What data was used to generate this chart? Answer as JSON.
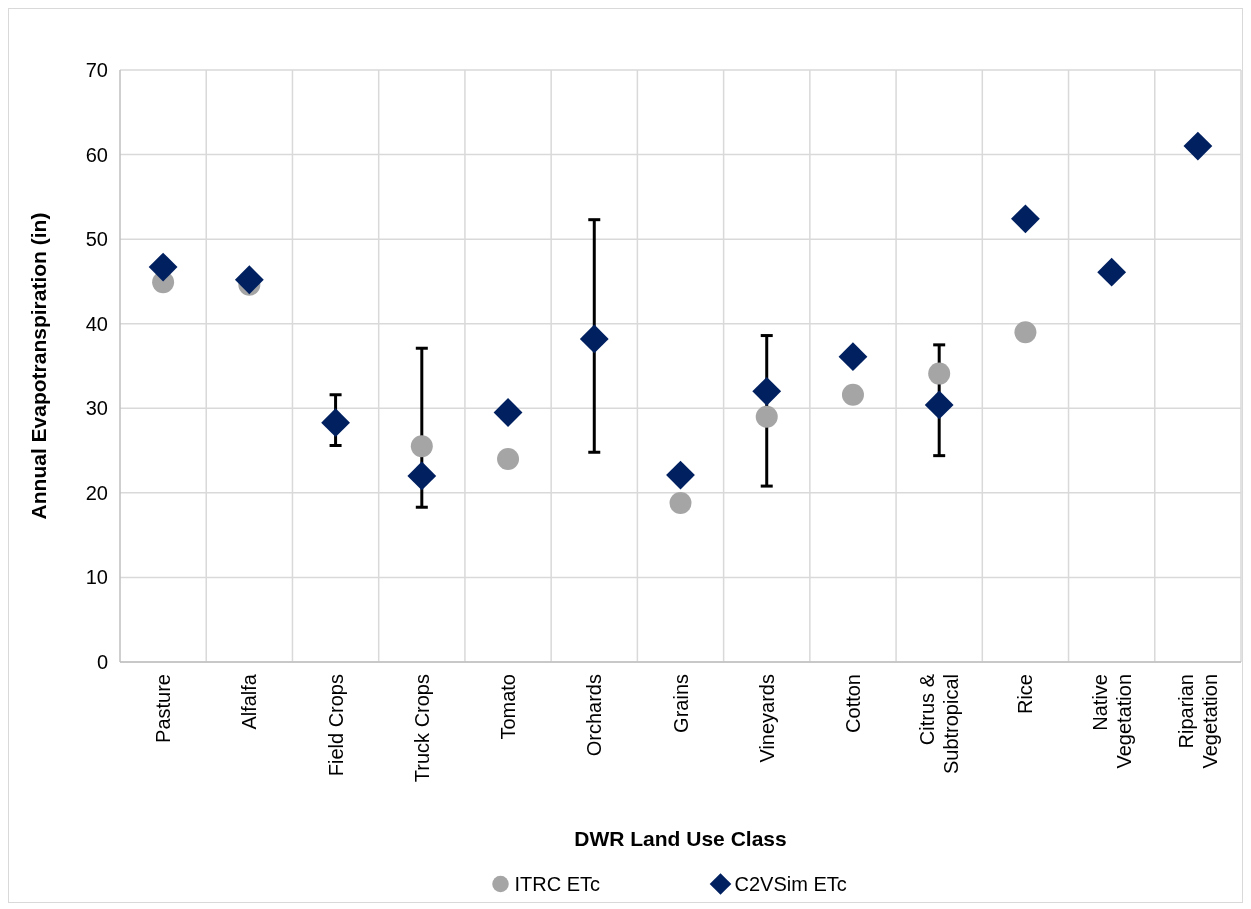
{
  "chart_data": {
    "type": "scatter",
    "xlabel": "DWR Land Use Class",
    "ylabel": "Annual Evapotranspiration (in)",
    "categories": [
      "Pasture",
      "Alfalfa",
      "Field Crops",
      "Truck Crops",
      "Tomato",
      "Orchards",
      "Grains",
      "Vineyards",
      "Cotton",
      "Citrus & Subtropical",
      "Rice",
      "Native Vegetation",
      "Riparian Vegetation"
    ],
    "series": [
      {
        "name": "ITRC ETc",
        "color": "#a5a5a5",
        "marker": "circle",
        "values": [
          44.9,
          44.6,
          null,
          25.5,
          24.0,
          null,
          18.8,
          29.0,
          31.6,
          34.1,
          39.0,
          null,
          null
        ]
      },
      {
        "name": "C2VSim ETc",
        "color": "#002060",
        "marker": "diamond",
        "values": [
          46.7,
          45.2,
          28.3,
          22.0,
          29.5,
          38.2,
          22.1,
          32.0,
          36.1,
          30.4,
          52.4,
          46.1,
          61.0
        ],
        "errors": [
          null,
          null,
          [
            25.6,
            31.6
          ],
          [
            18.3,
            37.1
          ],
          null,
          [
            24.8,
            52.3
          ],
          null,
          [
            20.8,
            38.6
          ],
          null,
          [
            24.4,
            37.5
          ],
          null,
          null,
          null
        ]
      }
    ],
    "ylim": [
      0,
      70
    ],
    "yticks": [
      0,
      10,
      20,
      30,
      40,
      50,
      60,
      70
    ],
    "grid": true,
    "legend": "bottom"
  }
}
